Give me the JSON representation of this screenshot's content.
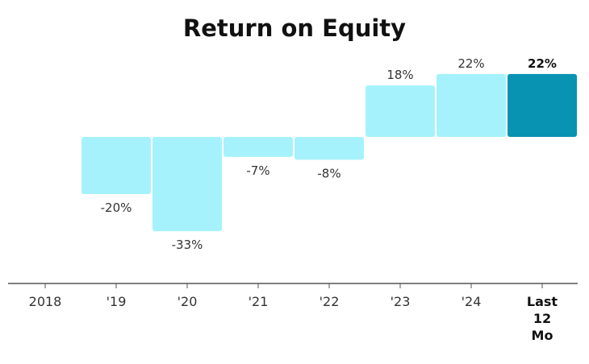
{
  "chart_data": {
    "type": "bar",
    "title": "Return on Equity",
    "xlabel": "",
    "ylabel": "",
    "categories": [
      "2018",
      "'19",
      "'20",
      "'21",
      "'22",
      "'23",
      "'24",
      "Last 12 Mo"
    ],
    "values": [
      null,
      -20,
      -33,
      -7,
      -8,
      18,
      22,
      22
    ],
    "data_labels": [
      "",
      "-20%",
      "-33%",
      "-7%",
      "-8%",
      "18%",
      "22%",
      "22%"
    ],
    "highlight_index": 7,
    "ylim": [
      -51,
      24
    ],
    "grid": false,
    "legend": "none"
  },
  "colors": {
    "bar": "#a6f2fc",
    "highlight_bar": "#0893b3",
    "axis": "#555555",
    "text": "#333333"
  }
}
